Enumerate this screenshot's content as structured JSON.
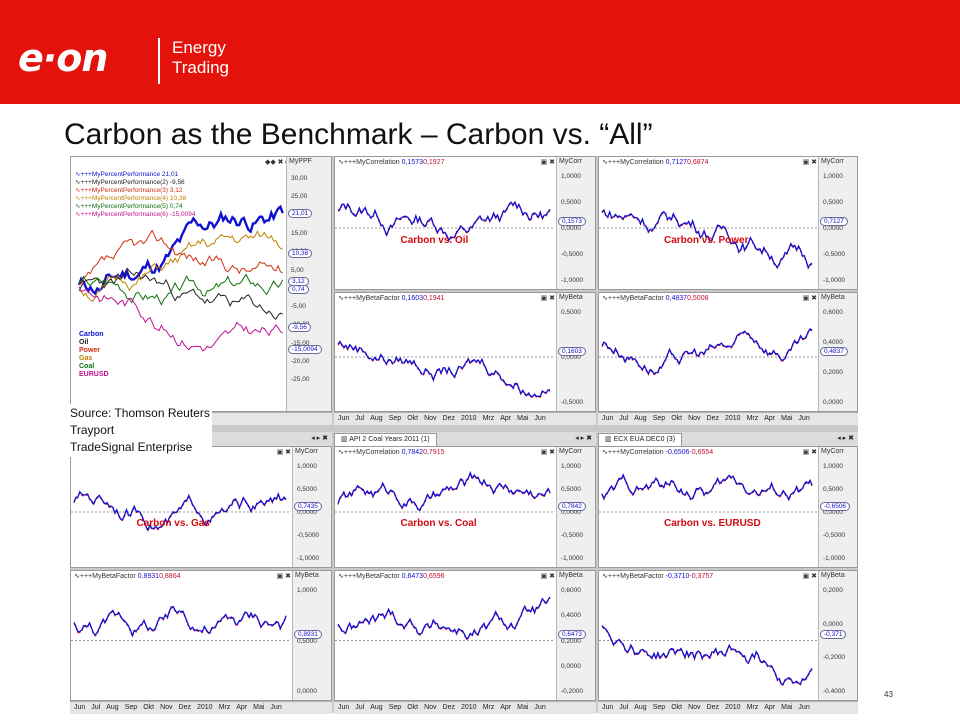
{
  "header": {
    "logo_text": "e·on",
    "logo_sub_line1": "Energy",
    "logo_sub_line2": "Trading",
    "color": "#e3120b"
  },
  "slide": {
    "title": "Carbon as the Benchmark – Carbon vs. “All”",
    "page_number": "43"
  },
  "source": {
    "line1": "Source: Thomson Reuters",
    "line2": "Trayport",
    "line3": "TradeSignal Enterprise"
  },
  "performance": {
    "axis_label": "MyPPF",
    "legend": [
      {
        "label": "∿+++MyPercentPerformance 21,01",
        "color": "#1010d0"
      },
      {
        "label": "∿+++MyPercentPerformance(2) -9,56",
        "color": "#222222"
      },
      {
        "label": "∿+++MyPercentPerformance(3) 3,12",
        "color": "#d03010"
      },
      {
        "label": "∿+++MyPercentPerformance(4) 10,38",
        "color": "#c08000"
      },
      {
        "label": "∿+++MyPercentPerformance(5) 0,74",
        "color": "#107010"
      },
      {
        "label": "∿+++MyPercentPerformance(6) -15,0094",
        "color": "#c01090"
      }
    ],
    "commodities": [
      {
        "label": "Carbon",
        "color": "#1010d0"
      },
      {
        "label": "Oil",
        "color": "#222222"
      },
      {
        "label": "Power",
        "color": "#d03010"
      },
      {
        "label": "Gas",
        "color": "#c08000"
      },
      {
        "label": "Coal",
        "color": "#107010"
      },
      {
        "label": "EURUSD",
        "color": "#c01090"
      }
    ],
    "ticks": [
      "30,00",
      "25,00",
      "20,00",
      "15,00",
      "10,00",
      "5,00",
      "0,00",
      "-5,00",
      "-10,00",
      "-15,00",
      "-20,00",
      "-25,00"
    ],
    "tags": [
      "21,01",
      "10,38",
      "3,12",
      "0,74",
      "-9,56",
      "-15,0094"
    ]
  },
  "xaxis_months": [
    "Jun",
    "Jul",
    "Aug",
    "Sep",
    "Okt",
    "Nov",
    "Dez",
    "2010",
    "Mrz",
    "Apr",
    "Mai",
    "Jun"
  ],
  "tabs": {
    "coal": "API 2 Coal Years 2011 (1)",
    "eurusd": "ECX EUA DEC0 (3)"
  },
  "panels": [
    {
      "id": "oil-corr",
      "header": "∿+++MyCorrelation",
      "v1": "0,1573",
      "v2": "0,1927",
      "axis": "MyCorr",
      "ticks": [
        "1,0000",
        "0,5000",
        "0,0000",
        "-0,5000",
        "-1,0000"
      ],
      "tag": "0,1573",
      "annotation": "Carbon vs. Oil"
    },
    {
      "id": "power-corr",
      "header": "∿+++MyCorrelation",
      "v1": "0,7127",
      "v2": "0,6874",
      "axis": "MyCorr",
      "ticks": [
        "1,0000",
        "0,5000",
        "0,0000",
        "-0,5000",
        "-1,0000"
      ],
      "tag": "0,7127",
      "annotation": "Carbon vs. Power"
    },
    {
      "id": "oil-beta",
      "header": "∿+++MyBetaFactor",
      "v1": "0,1603",
      "v2": "0,1941",
      "axis": "MyBeta",
      "ticks": [
        "0,5000",
        "0,0000",
        "-0,5000"
      ],
      "tag": "0,1603",
      "annotation": ""
    },
    {
      "id": "power-beta",
      "header": "∿+++MyBetaFactor",
      "v1": "0,4837",
      "v2": "0,5008",
      "axis": "MyBeta",
      "ticks": [
        "0,6000",
        "0,4000",
        "0,2000",
        "0,0000"
      ],
      "tag": "0,4837",
      "annotation": ""
    },
    {
      "id": "gas-corr",
      "header": "",
      "v1": "",
      "v2": "",
      "axis": "MyCorr",
      "ticks": [
        "1,0000",
        "0,5000",
        "0,0000",
        "-0,5000",
        "-1,0000"
      ],
      "tag": "0,7435",
      "annotation": "Carbon vs. Gas"
    },
    {
      "id": "coal-corr",
      "header": "∿+++MyCorrelation",
      "v1": "0,7842",
      "v2": "0,7915",
      "axis": "MyCorr",
      "ticks": [
        "1,0000",
        "0,5000",
        "0,0000",
        "-0,5000",
        "-1,0000"
      ],
      "tag": "0,7842",
      "annotation": "Carbon vs. Coal"
    },
    {
      "id": "eurusd-corr",
      "header": "∿+++MyCorrelation",
      "v1": "-0,6506",
      "v2": "-0,6554",
      "axis": "MyCorr",
      "ticks": [
        "1,0000",
        "0,5000",
        "0,0000",
        "-0,5000",
        "-1,0000"
      ],
      "tag": "-0,6506",
      "annotation": "Carbon vs. EURUSD"
    },
    {
      "id": "gas-beta",
      "header": "∿+++MyBetaFactor",
      "v1": "0,8931",
      "v2": "0,8864",
      "axis": "MyBeta",
      "ticks": [
        "1,0000",
        "0,5000",
        "0,0000"
      ],
      "tag": "0,8931",
      "annotation": ""
    },
    {
      "id": "coal-beta",
      "header": "∿+++MyBetaFactor",
      "v1": "0,6473",
      "v2": "0,6596",
      "axis": "MyBeta",
      "ticks": [
        "0,6000",
        "0,4000",
        "0,2000",
        "0,0000",
        "-0,2000"
      ],
      "tag": "0,6473",
      "annotation": ""
    },
    {
      "id": "eurusd-beta",
      "header": "∿+++MyBetaFactor",
      "v1": "-0,3710",
      "v2": "-0,3757",
      "axis": "MyBeta",
      "ticks": [
        "0,2000",
        "0,0000",
        "-0,2000",
        "-0,4000"
      ],
      "tag": "-0,371",
      "annotation": ""
    }
  ]
}
